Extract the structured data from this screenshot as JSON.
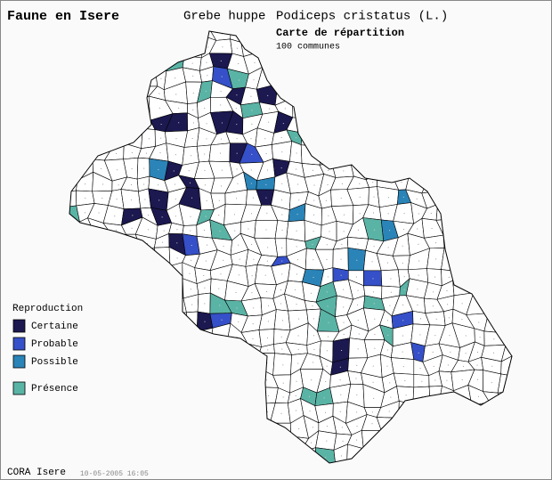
{
  "header": {
    "title": "Faune en Isere",
    "species_common": "Grebe huppe",
    "species_latin": "Podiceps cristatus (L.)",
    "map_title": "Carte de répartition",
    "count": "100 communes"
  },
  "legend": {
    "title": "Reproduction",
    "items": [
      {
        "label": "Certaine",
        "color": "#1c1850"
      },
      {
        "label": "Probable",
        "color": "#3550c8"
      },
      {
        "label": "Possible",
        "color": "#2a84b8"
      },
      {
        "label": "Présence",
        "color": "#5ab4a6"
      }
    ]
  },
  "footer": {
    "source": "CORA Isere",
    "date": "10-05-2005 16:05"
  }
}
